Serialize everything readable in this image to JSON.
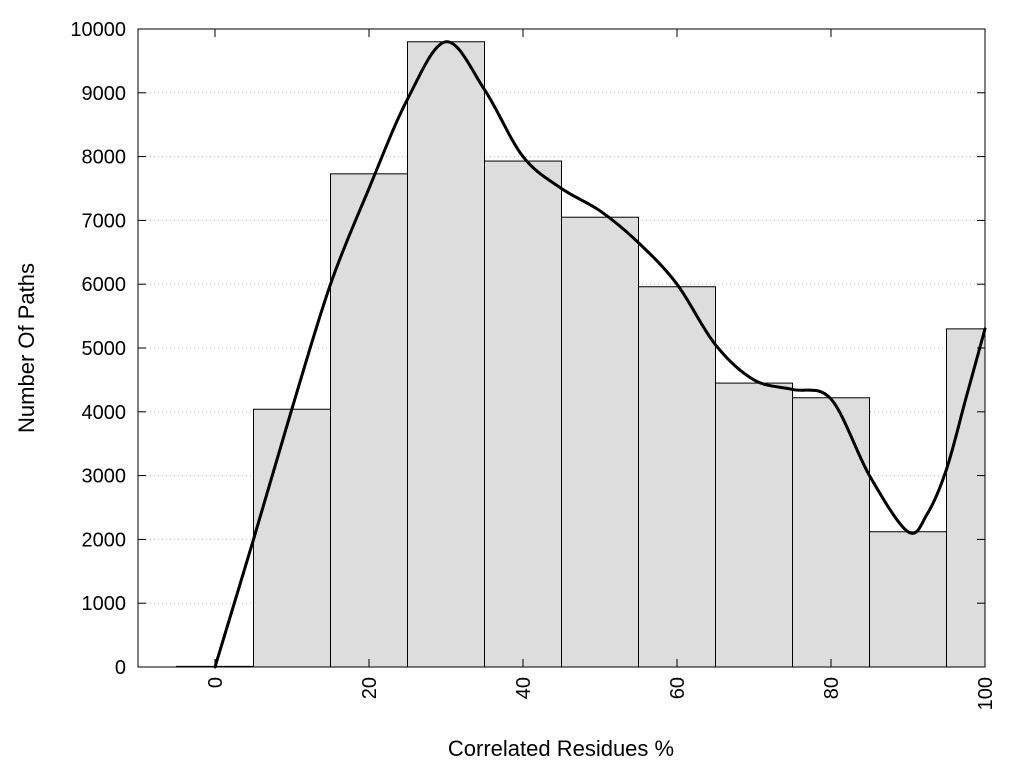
{
  "chart_data": {
    "type": "bar",
    "title": "",
    "xlabel": "Correlated Residues %",
    "ylabel": "Number Of Paths",
    "xlim": [
      -10,
      100
    ],
    "ylim": [
      0,
      10000
    ],
    "xticks": [
      0,
      20,
      40,
      60,
      80,
      100
    ],
    "yticks": [
      0,
      1000,
      2000,
      3000,
      4000,
      5000,
      6000,
      7000,
      8000,
      9000,
      10000
    ],
    "grid": "horizontal dotted",
    "bar_width": 10,
    "bars": [
      {
        "x": 0,
        "value": 10
      },
      {
        "x": 10,
        "value": 4040
      },
      {
        "x": 20,
        "value": 7730
      },
      {
        "x": 30,
        "value": 9800
      },
      {
        "x": 40,
        "value": 7930
      },
      {
        "x": 50,
        "value": 7050
      },
      {
        "x": 60,
        "value": 5960
      },
      {
        "x": 70,
        "value": 4450
      },
      {
        "x": 80,
        "value": 4220
      },
      {
        "x": 90,
        "value": 2120
      },
      {
        "x": 100,
        "value": 5300
      }
    ],
    "curve": [
      [
        0,
        0
      ],
      [
        5,
        2000
      ],
      [
        10,
        4050
      ],
      [
        15,
        6000
      ],
      [
        20,
        7500
      ],
      [
        25,
        8900
      ],
      [
        30,
        9800
      ],
      [
        35,
        9050
      ],
      [
        40,
        8000
      ],
      [
        45,
        7500
      ],
      [
        50,
        7150
      ],
      [
        55,
        6650
      ],
      [
        60,
        6000
      ],
      [
        65,
        5050
      ],
      [
        70,
        4500
      ],
      [
        75,
        4350
      ],
      [
        80,
        4200
      ],
      [
        85,
        3000
      ],
      [
        90,
        2120
      ],
      [
        92.5,
        2400
      ],
      [
        95,
        3100
      ],
      [
        97.5,
        4200
      ],
      [
        100,
        5300
      ]
    ],
    "colors": {
      "bar_fill": "#dddddd",
      "bar_stroke": "#000000",
      "curve": "#000000",
      "grid": "#bbbbbb"
    }
  }
}
